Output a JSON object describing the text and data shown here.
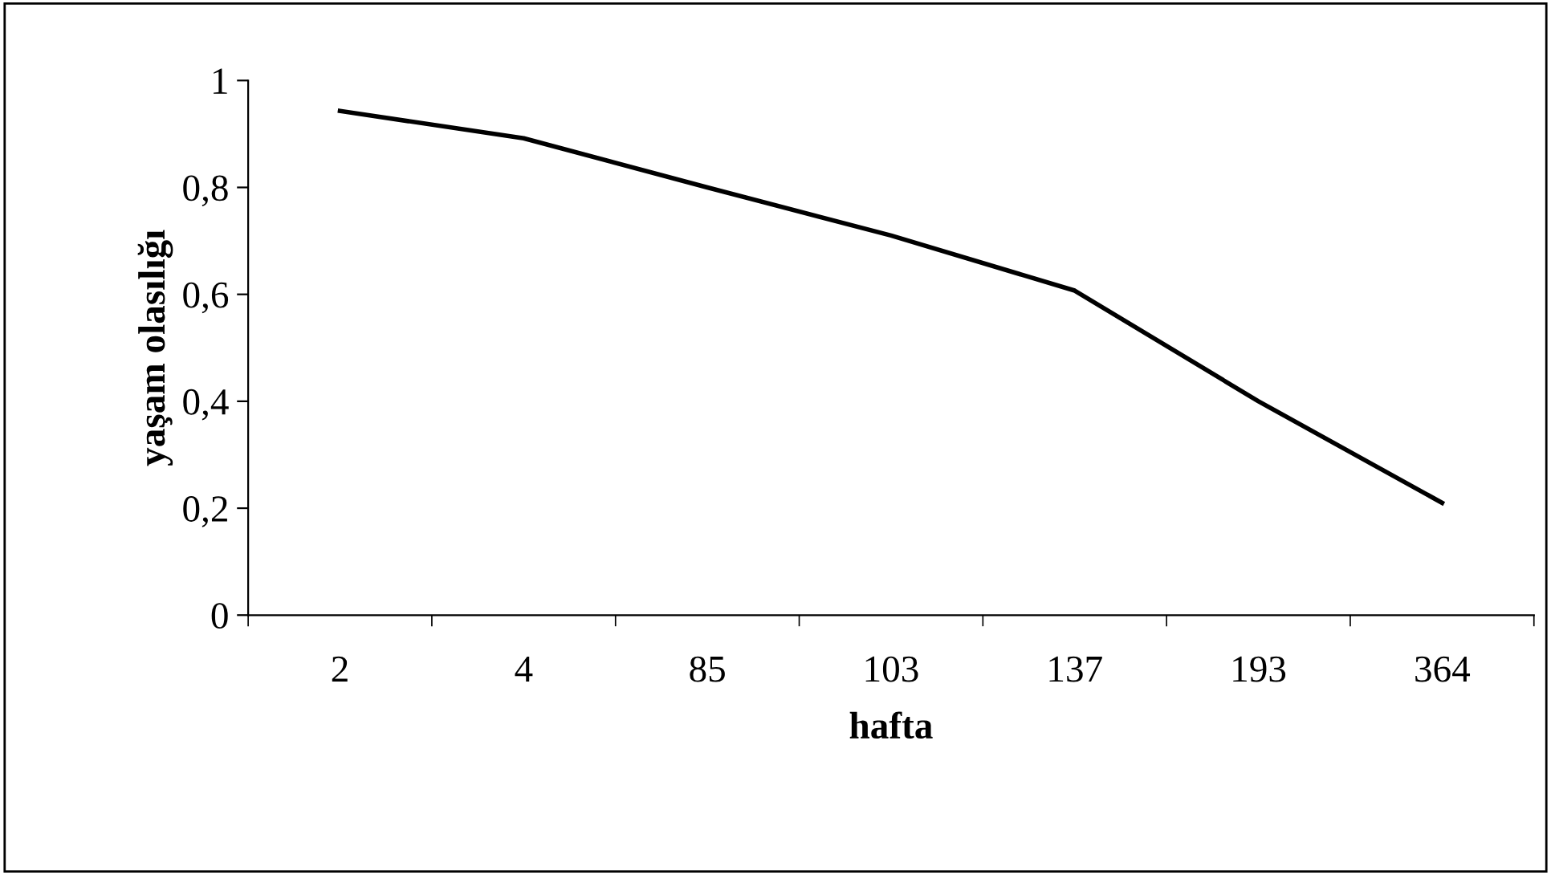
{
  "chart_data": {
    "type": "line",
    "xlabel": "hafta",
    "ylabel": "yaşam olasılığı",
    "categories": [
      "2",
      "4",
      "85",
      "103",
      "137",
      "193",
      "364"
    ],
    "series": [
      {
        "color": "#000000",
        "values": [
          0.943,
          0.892,
          0.8,
          0.71,
          0.607,
          0.4,
          0.21
        ]
      }
    ],
    "ylim": [
      0,
      1
    ],
    "yticks": [
      0,
      {
        "value": 0.2,
        "label": "0,2"
      },
      {
        "value": 0.4,
        "label": "0,4"
      },
      {
        "value": 0.6,
        "label": "0,6"
      },
      {
        "value": 0.8,
        "label": "0,8"
      },
      1
    ],
    "grid": false,
    "legend": false,
    "marker": "none",
    "line_style": "solid"
  }
}
